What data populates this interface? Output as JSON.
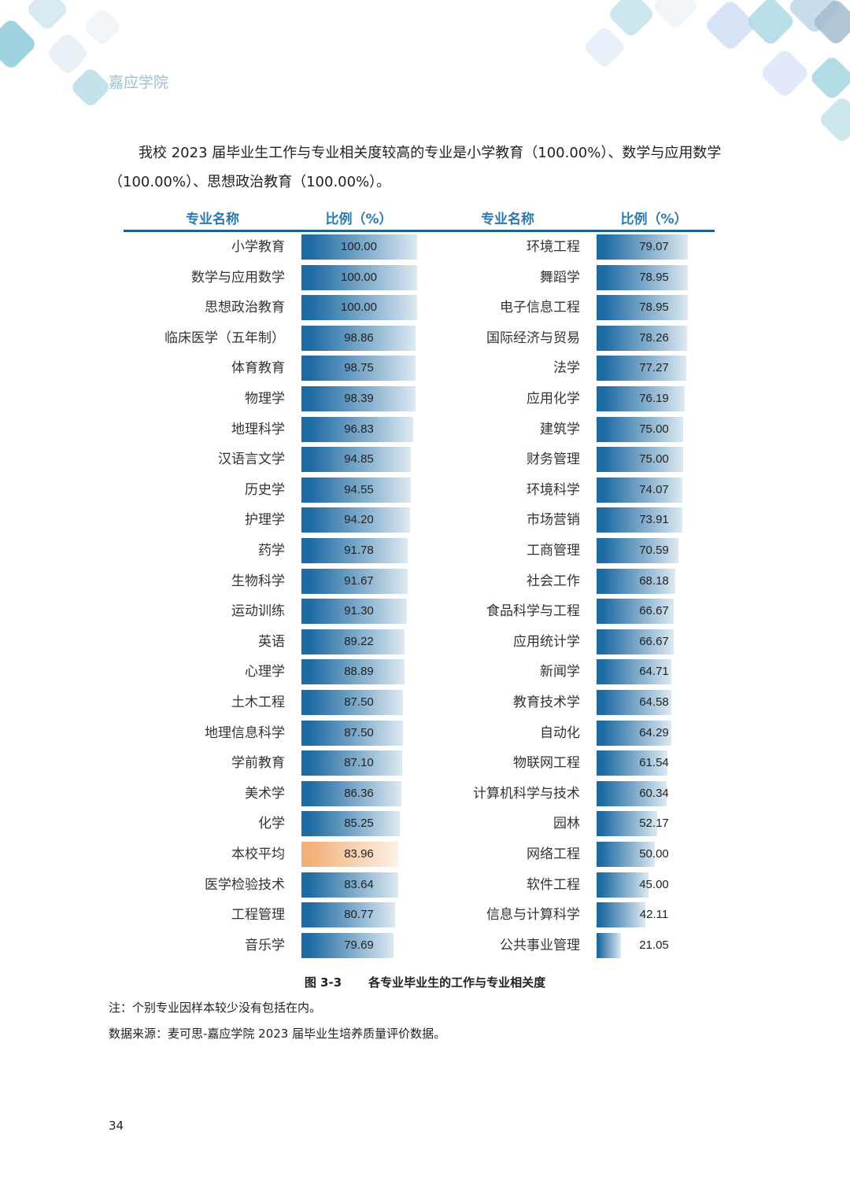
{
  "header": {
    "school_name": "嘉应学院"
  },
  "intro": "我校 2023 届毕业生工作与专业相关度较高的专业是小学教育（100.00%）、数学与应用数学（100.00%）、思想政治教育（100.00%）。",
  "table": {
    "col_major": "专业名称",
    "col_ratio": "比例（%）",
    "left": [
      {
        "name": "小学教育",
        "value": "100.00"
      },
      {
        "name": "数学与应用数学",
        "value": "100.00"
      },
      {
        "name": "思想政治教育",
        "value": "100.00"
      },
      {
        "name": "临床医学（五年制）",
        "value": "98.86"
      },
      {
        "name": "体育教育",
        "value": "98.75"
      },
      {
        "name": "物理学",
        "value": "98.39"
      },
      {
        "name": "地理科学",
        "value": "96.83"
      },
      {
        "name": "汉语言文学",
        "value": "94.85"
      },
      {
        "name": "历史学",
        "value": "94.55"
      },
      {
        "name": "护理学",
        "value": "94.20"
      },
      {
        "name": "药学",
        "value": "91.78"
      },
      {
        "name": "生物科学",
        "value": "91.67"
      },
      {
        "name": "运动训练",
        "value": "91.30"
      },
      {
        "name": "英语",
        "value": "89.22"
      },
      {
        "name": "心理学",
        "value": "88.89"
      },
      {
        "name": "土木工程",
        "value": "87.50"
      },
      {
        "name": "地理信息科学",
        "value": "87.50"
      },
      {
        "name": "学前教育",
        "value": "87.10"
      },
      {
        "name": "美术学",
        "value": "86.36"
      },
      {
        "name": "化学",
        "value": "85.25"
      },
      {
        "name": "本校平均",
        "value": "83.96",
        "highlight": true
      },
      {
        "name": "医学检验技术",
        "value": "83.64"
      },
      {
        "name": "工程管理",
        "value": "80.77"
      },
      {
        "name": "音乐学",
        "value": "79.69"
      }
    ],
    "right": [
      {
        "name": "环境工程",
        "value": "79.07"
      },
      {
        "name": "舞蹈学",
        "value": "78.95"
      },
      {
        "name": "电子信息工程",
        "value": "78.95"
      },
      {
        "name": "国际经济与贸易",
        "value": "78.26"
      },
      {
        "name": "法学",
        "value": "77.27"
      },
      {
        "name": "应用化学",
        "value": "76.19"
      },
      {
        "name": "建筑学",
        "value": "75.00"
      },
      {
        "name": "财务管理",
        "value": "75.00"
      },
      {
        "name": "环境科学",
        "value": "74.07"
      },
      {
        "name": "市场营销",
        "value": "73.91"
      },
      {
        "name": "工商管理",
        "value": "70.59"
      },
      {
        "name": "社会工作",
        "value": "68.18"
      },
      {
        "name": "食品科学与工程",
        "value": "66.67"
      },
      {
        "name": "应用统计学",
        "value": "66.67"
      },
      {
        "name": "新闻学",
        "value": "64.71"
      },
      {
        "name": "教育技术学",
        "value": "64.58"
      },
      {
        "name": "自动化",
        "value": "64.29"
      },
      {
        "name": "物联网工程",
        "value": "61.54"
      },
      {
        "name": "计算机科学与技术",
        "value": "60.34"
      },
      {
        "name": "园林",
        "value": "52.17"
      },
      {
        "name": "网络工程",
        "value": "50.00"
      },
      {
        "name": "软件工程",
        "value": "45.00"
      },
      {
        "name": "信息与计算科学",
        "value": "42.11"
      },
      {
        "name": "公共事业管理",
        "value": "21.05"
      }
    ]
  },
  "colors": {
    "bar_dark": "#1e6aa3",
    "bar_light": "#dde9f1",
    "avg_dark": "#f2b079",
    "avg_light": "#fdf1e6",
    "header_text": "#2b7ab0"
  },
  "caption": {
    "fig_no": "图 3-3",
    "title": "各专业毕业生的工作与专业相关度"
  },
  "note": "注：个别专业因样本较少没有包括在内。",
  "source": "数据来源：麦可思-嘉应学院 2023 届毕业生培养质量评价数据。",
  "page_number": "34"
}
